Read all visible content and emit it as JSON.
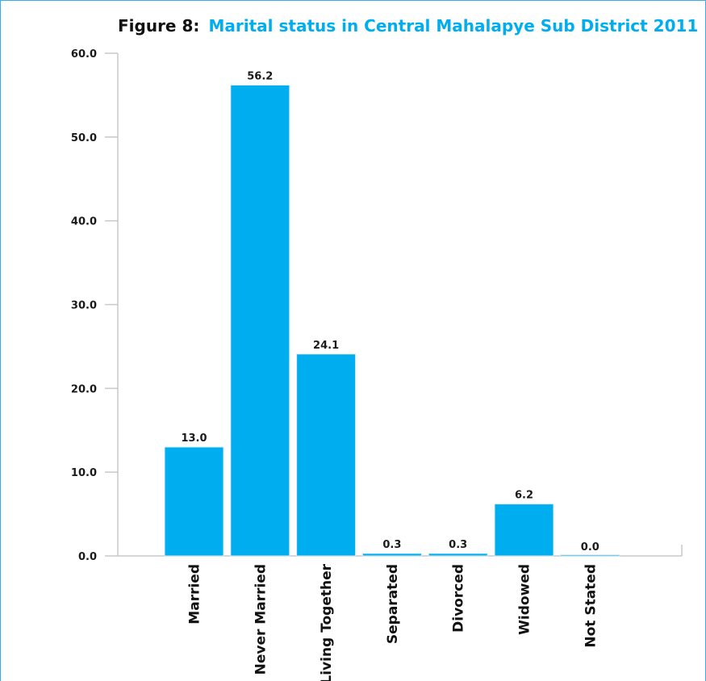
{
  "chart_data": {
    "type": "bar",
    "title_prefix": "Figure 8:",
    "title": "Marital status in Central Mahalapye Sub District  2011",
    "categories": [
      "Married",
      "Never Married",
      "Living Together",
      "Separated",
      "Divorced",
      "Widowed",
      "Not Stated"
    ],
    "values": [
      13.0,
      56.2,
      24.1,
      0.3,
      0.3,
      6.2,
      0.0
    ],
    "value_labels": [
      "13.0",
      "56.2",
      "24.1",
      "0.3",
      "0.3",
      "6.2",
      "0.0"
    ],
    "yticks": [
      "0.0",
      "10.0",
      "20.0",
      "30.0",
      "40.0",
      "50.0",
      "60.0"
    ],
    "ylim": [
      0,
      60
    ],
    "xlabel": "",
    "ylabel": "",
    "grid": false,
    "legend": false,
    "colors": {
      "bar": "#00aeef",
      "bar_edge": "#d9eef8",
      "title_accent": "#00aeef",
      "axis": "#c8c8c8",
      "frame": "#3aaee0"
    }
  }
}
